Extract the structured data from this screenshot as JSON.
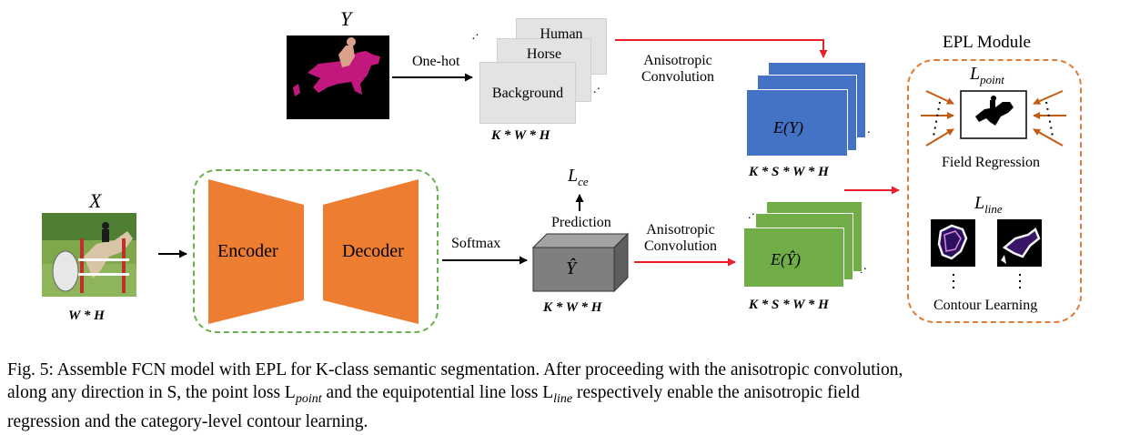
{
  "labels": {
    "y_symbol": "Y",
    "x_symbol": "X",
    "one_hot": "One-hot",
    "softmax": "Softmax",
    "prediction": "Prediction",
    "encoder": "Encoder",
    "decoder": "Decoder",
    "aniso_1": "Anisotropic",
    "aniso_2": "Convolution",
    "epl_module": "EPL Module",
    "field_regression": "Field Regression",
    "contour_learning": "Contour Learning",
    "ey": "E(Y)",
    "ey_hat": "E(Ŷ)",
    "y_hat": "Ŷ",
    "l_ce_main": "L",
    "l_ce_sub": "ce",
    "l_point_main": "L",
    "l_point_sub": "point",
    "l_line_main": "L",
    "l_line_sub": "line"
  },
  "channels": [
    "Human",
    "Horse",
    "Background"
  ],
  "dims": {
    "kwh_onehot": "K * W * H",
    "ksw_top": "K * S * W * H",
    "wh_input": "W * H",
    "kwh_pred": "K * W * H",
    "ksw_bottom": "K * S * W * H"
  },
  "caption": {
    "line1": "Fig. 5: Assemble FCN model with EPL for K-class semantic segmentation. After proceeding with the anisotropic convolution,",
    "line2": "along any direction in S, the point loss L",
    "line2_sub": "point",
    "line2_mid": " and the equipotential line loss L",
    "line2_sub2": "line",
    "line2_end": " respectively enable the anisotropic field",
    "line3": "regression and the category-level contour learning."
  },
  "colors": {
    "encoder_orange": "#ed7d31",
    "map_blue": "#4472c4",
    "map_green": "#70ad47",
    "arrow_red": "#e8202a",
    "dashed_green": "#6ab04c",
    "dashed_orange": "#e07b39",
    "mask_magenta": "#c2187e"
  },
  "icons": [
    "horse-mask-image",
    "horse-photo-image",
    "contour-image"
  ]
}
